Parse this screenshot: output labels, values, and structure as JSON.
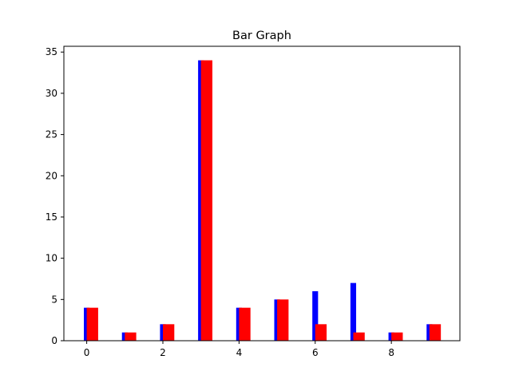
{
  "chart_data": {
    "type": "bar",
    "title": "Bar Graph",
    "xlabel": "",
    "ylabel": "",
    "x": [
      0,
      1,
      2,
      3,
      4,
      5,
      6,
      7,
      8,
      9
    ],
    "xlim": [
      -0.6,
      9.8
    ],
    "ylim": [
      0,
      35.7
    ],
    "xticks": [
      0,
      2,
      4,
      6,
      8
    ],
    "yticks": [
      0,
      5,
      10,
      15,
      20,
      25,
      30,
      35
    ],
    "grid": false,
    "series": [
      {
        "color": "#0000ff",
        "values": [
          4,
          1,
          2,
          34,
          4,
          5,
          6,
          7,
          1,
          2
        ]
      },
      {
        "color": "#ff0000",
        "values": [
          4,
          1,
          2,
          34,
          4,
          5,
          2,
          1,
          1,
          2
        ]
      }
    ]
  }
}
